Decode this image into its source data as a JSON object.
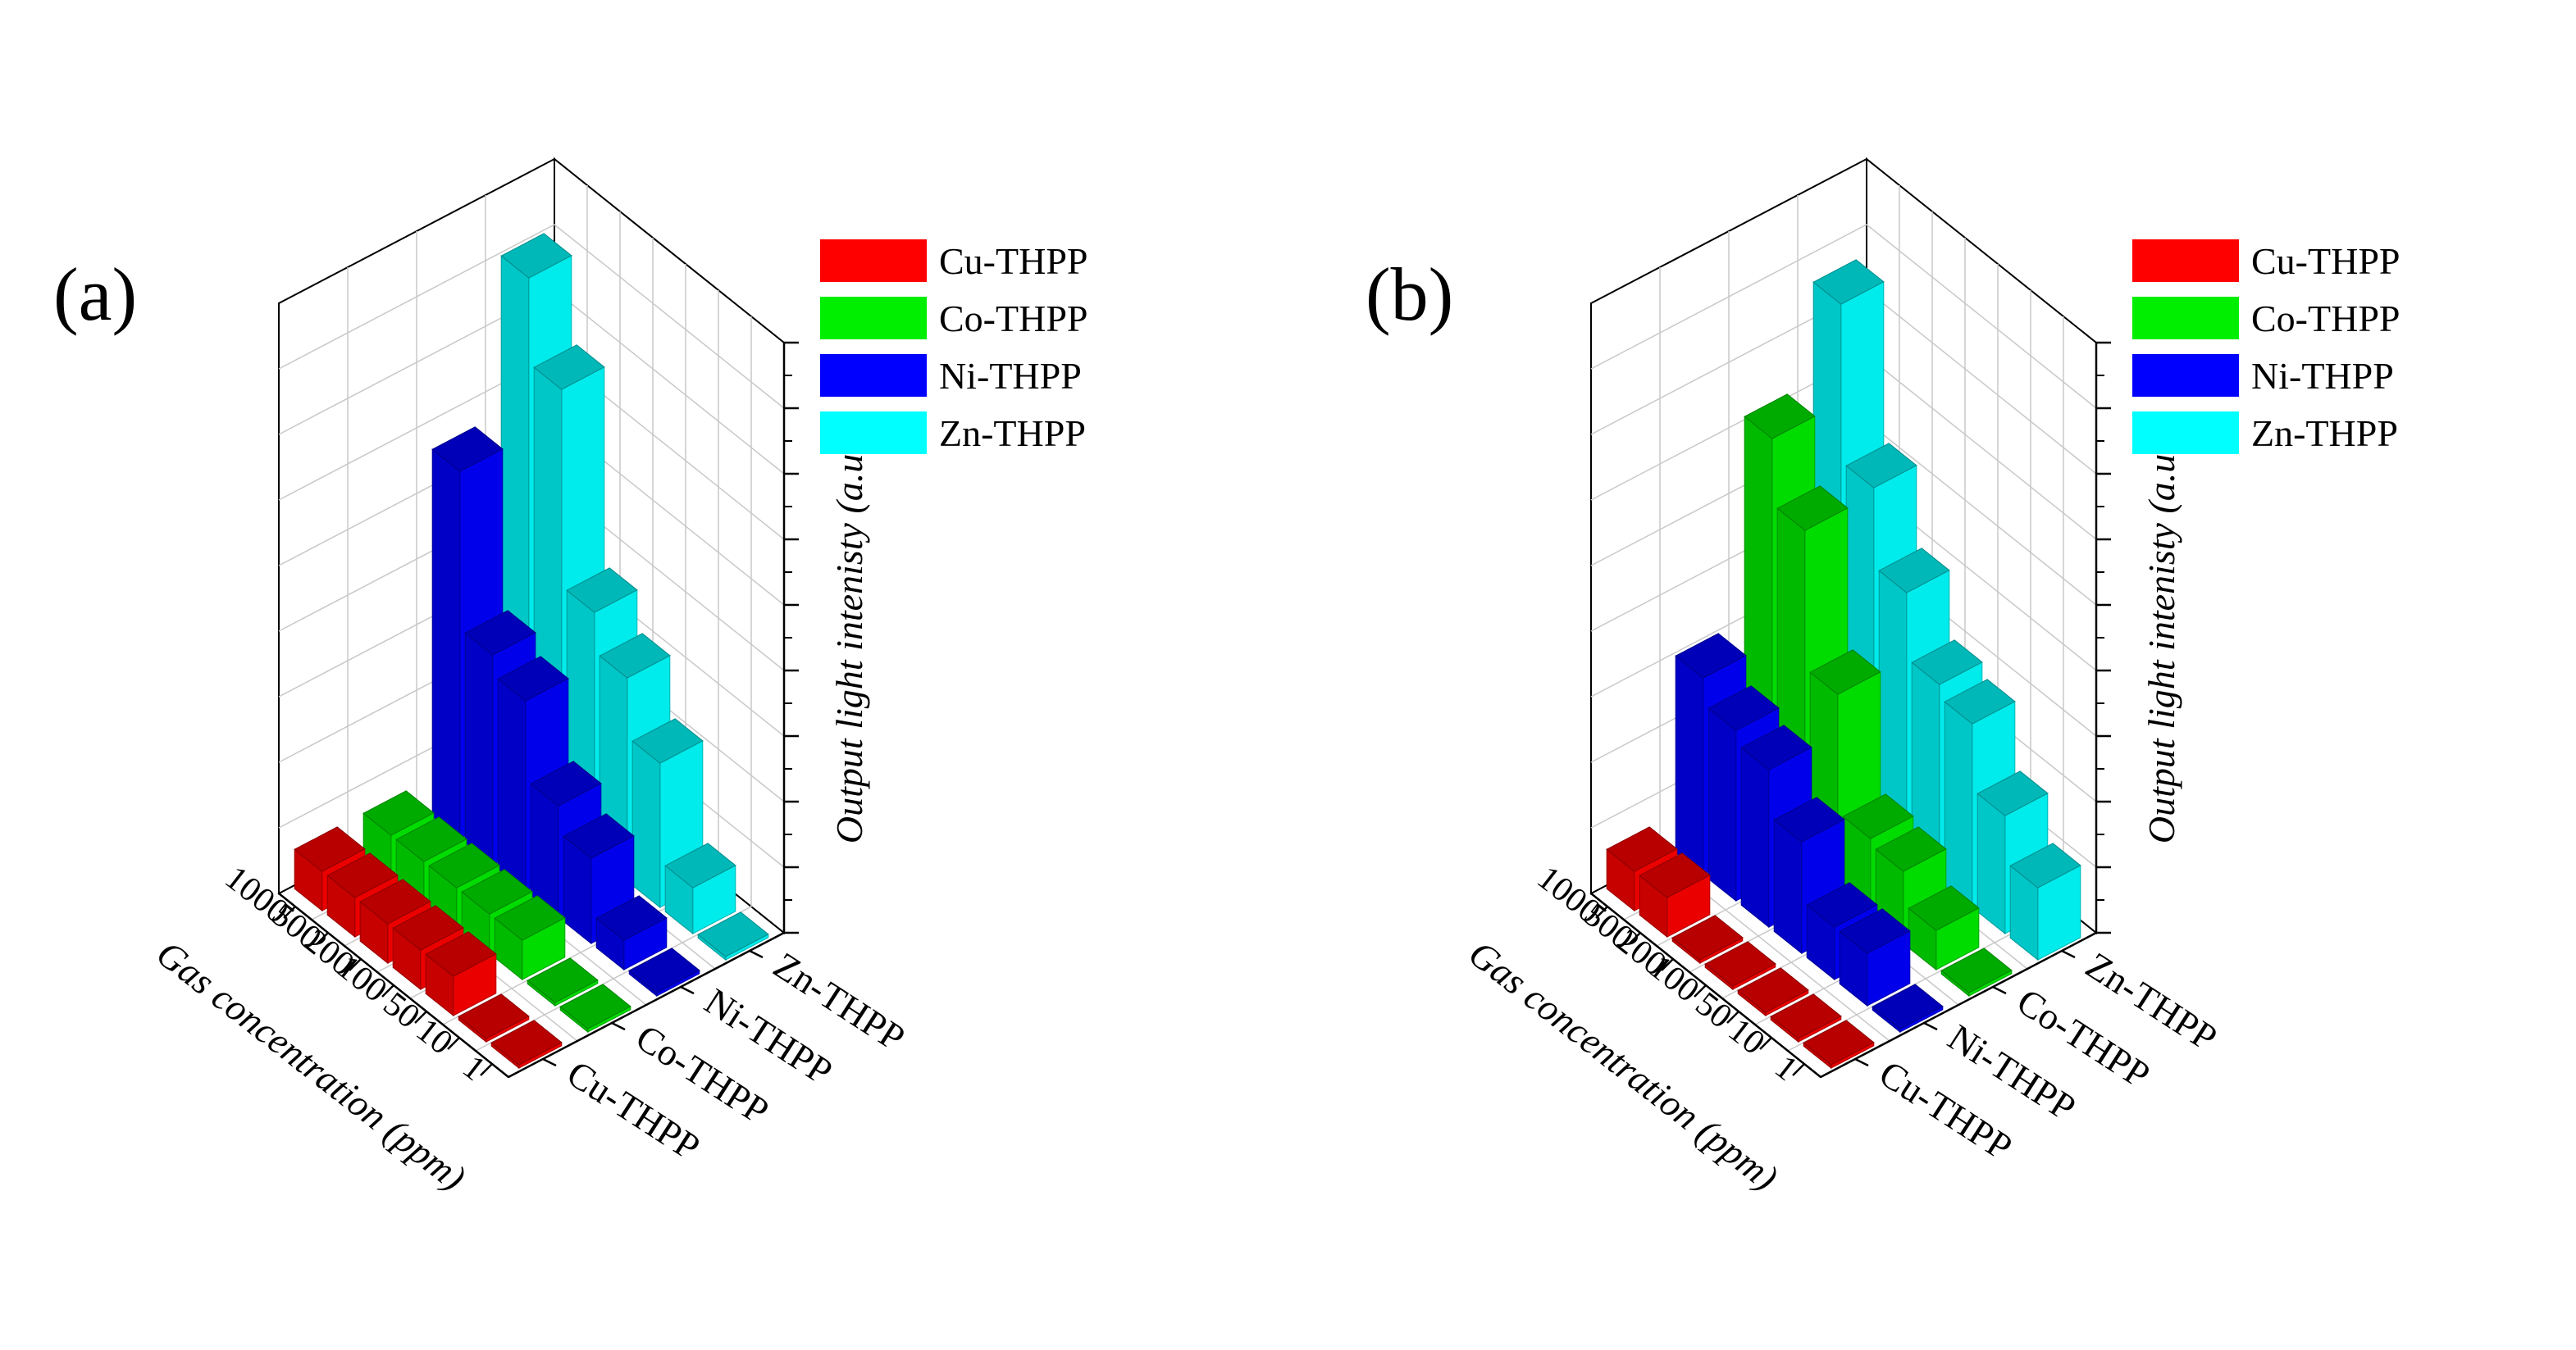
{
  "colors": {
    "Cu-THPP": "#ff0000",
    "Co-THPP": "#00ee00",
    "Ni-THPP": "#0000ff",
    "Zn-THPP": "#00ffff"
  },
  "chart_data": [
    {
      "type": "bar",
      "subtype": "3d-bar",
      "panel_label": "(a)",
      "categories": [
        "1000",
        "500",
        "200",
        "100",
        "50",
        "10",
        "1"
      ],
      "series_names": [
        "Cu-THPP",
        "Co-THPP",
        "Ni-THPP",
        "Zn-THPP"
      ],
      "series": [
        {
          "name": "Cu-THPP",
          "values": [
            0.6,
            0.6,
            0.6,
            0.6,
            0.6,
            0.05,
            0.05
          ]
        },
        {
          "name": "Co-THPP",
          "values": [
            0.6,
            0.6,
            0.6,
            0.6,
            0.6,
            0.05,
            0.05
          ]
        },
        {
          "name": "Ni-THPP",
          "values": [
            5.6,
            3.2,
            2.9,
            1.7,
            1.3,
            0.45,
            0.05
          ]
        },
        {
          "name": "Zn-THPP",
          "values": [
            8.0,
            6.7,
            3.7,
            3.1,
            2.2,
            0.7,
            0.05
          ]
        }
      ],
      "xlabel": "Gas concentration (ppm)",
      "zlabel": "Output light intenisty (a.u.)",
      "legend": [
        "Cu-THPP",
        "Co-THPP",
        "Ni-THPP",
        "Zn-THPP"
      ],
      "legend_position": "top-right",
      "zlim": [
        0,
        9
      ]
    },
    {
      "type": "bar",
      "subtype": "3d-bar",
      "panel_label": "(b)",
      "categories": [
        "1000",
        "500",
        "200",
        "100",
        "50",
        "10",
        "1"
      ],
      "series_names": [
        "Cu-THPP",
        "Ni-THPP",
        "Co-THPP",
        "Zn-THPP"
      ],
      "series": [
        {
          "name": "Cu-THPP",
          "values": [
            0.6,
            0.6,
            0.05,
            0.05,
            0.05,
            0.05,
            0.05
          ]
        },
        {
          "name": "Ni-THPP",
          "values": [
            3.0,
            2.6,
            2.4,
            1.7,
            0.8,
            0.8,
            0.05
          ]
        },
        {
          "name": "Co-THPP",
          "values": [
            6.1,
            5.1,
            3.0,
            1.2,
            1.1,
            0.6,
            0.05
          ]
        },
        {
          "name": "Zn-THPP",
          "values": [
            7.6,
            5.2,
            4.0,
            3.0,
            2.8,
            1.8,
            1.1
          ]
        }
      ],
      "xlabel": "Gas concentration (ppm)",
      "zlabel": "Output light intenisty (a.u.)",
      "legend": [
        "Cu-THPP",
        "Co-THPP",
        "Ni-THPP",
        "Zn-THPP"
      ],
      "legend_position": "top-right",
      "zlim": [
        0,
        9
      ]
    }
  ]
}
